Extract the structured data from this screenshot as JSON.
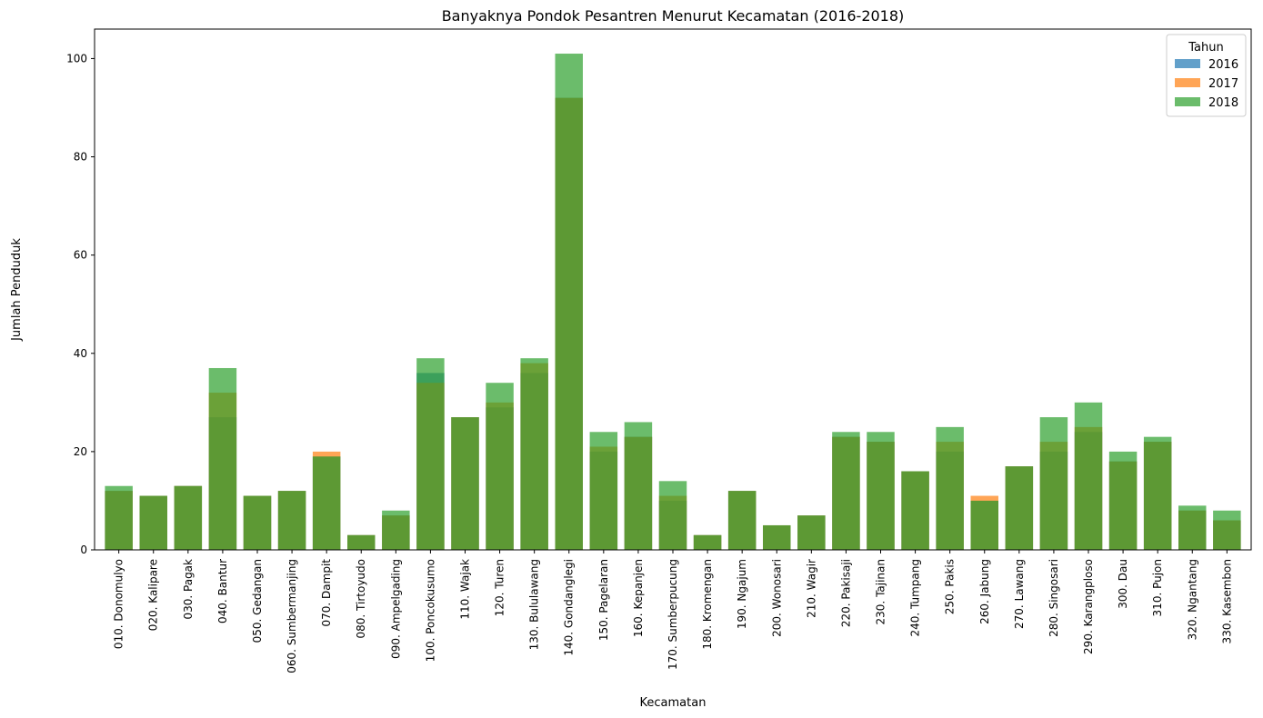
{
  "chart_data": {
    "type": "bar",
    "title": "Banyaknya Pondok Pesantren Menurut Kecamatan (2016-2018)",
    "xlabel": "Kecamatan",
    "ylabel": "Jumlah Penduduk",
    "ylim": [
      0,
      106
    ],
    "yticks": [
      0,
      20,
      40,
      60,
      80,
      100
    ],
    "grid": false,
    "legend": {
      "title": "Tahun",
      "placement": "top-right"
    },
    "overlay": true,
    "categories": [
      "010. Donomulyo",
      "020. Kalipare",
      "030. Pagak",
      "040. Bantur",
      "050. Gedangan",
      "060. Sumbermanjing",
      "070. Dampit",
      "080. Tirtoyudo",
      "090. Ampelgading",
      "100. Poncokusumo",
      "110. Wajak",
      "120. Turen",
      "130. Bululawang",
      "140. Gondanglegi",
      "150. Pagelaran",
      "160. Kepanjen",
      "170. Sumberpucung",
      "180. Kromengan",
      "190. Ngajum",
      "200. Wonosari",
      "210. Wagir",
      "220. Pakisaji",
      "230. Tajinan",
      "240. Tumpang",
      "250. Pakis",
      "260. Jabung",
      "270. Lawang",
      "280. Singosari",
      "290. Karangploso",
      "300. Dau",
      "310. Pujon",
      "320. Ngantang",
      "330. Kasembon"
    ],
    "series": [
      {
        "name": "2016",
        "color": "#1f77b4",
        "values": [
          12,
          11,
          13,
          27,
          11,
          12,
          19,
          3,
          7,
          36,
          27,
          29,
          36,
          92,
          20,
          23,
          10,
          3,
          12,
          5,
          7,
          23,
          22,
          16,
          20,
          10,
          17,
          20,
          24,
          18,
          22,
          8,
          6
        ]
      },
      {
        "name": "2017",
        "color": "#ff7f0e",
        "values": [
          12,
          11,
          13,
          32,
          11,
          12,
          20,
          3,
          7,
          34,
          27,
          30,
          38,
          92,
          21,
          23,
          11,
          3,
          12,
          5,
          7,
          23,
          22,
          16,
          22,
          11,
          17,
          22,
          25,
          18,
          22,
          8,
          6
        ]
      },
      {
        "name": "2018",
        "color": "#2ca02c",
        "values": [
          13,
          11,
          13,
          37,
          11,
          12,
          19,
          3,
          8,
          39,
          27,
          34,
          39,
          101,
          24,
          26,
          14,
          3,
          12,
          5,
          7,
          24,
          24,
          16,
          25,
          10,
          17,
          27,
          30,
          20,
          23,
          9,
          8
        ]
      }
    ]
  }
}
